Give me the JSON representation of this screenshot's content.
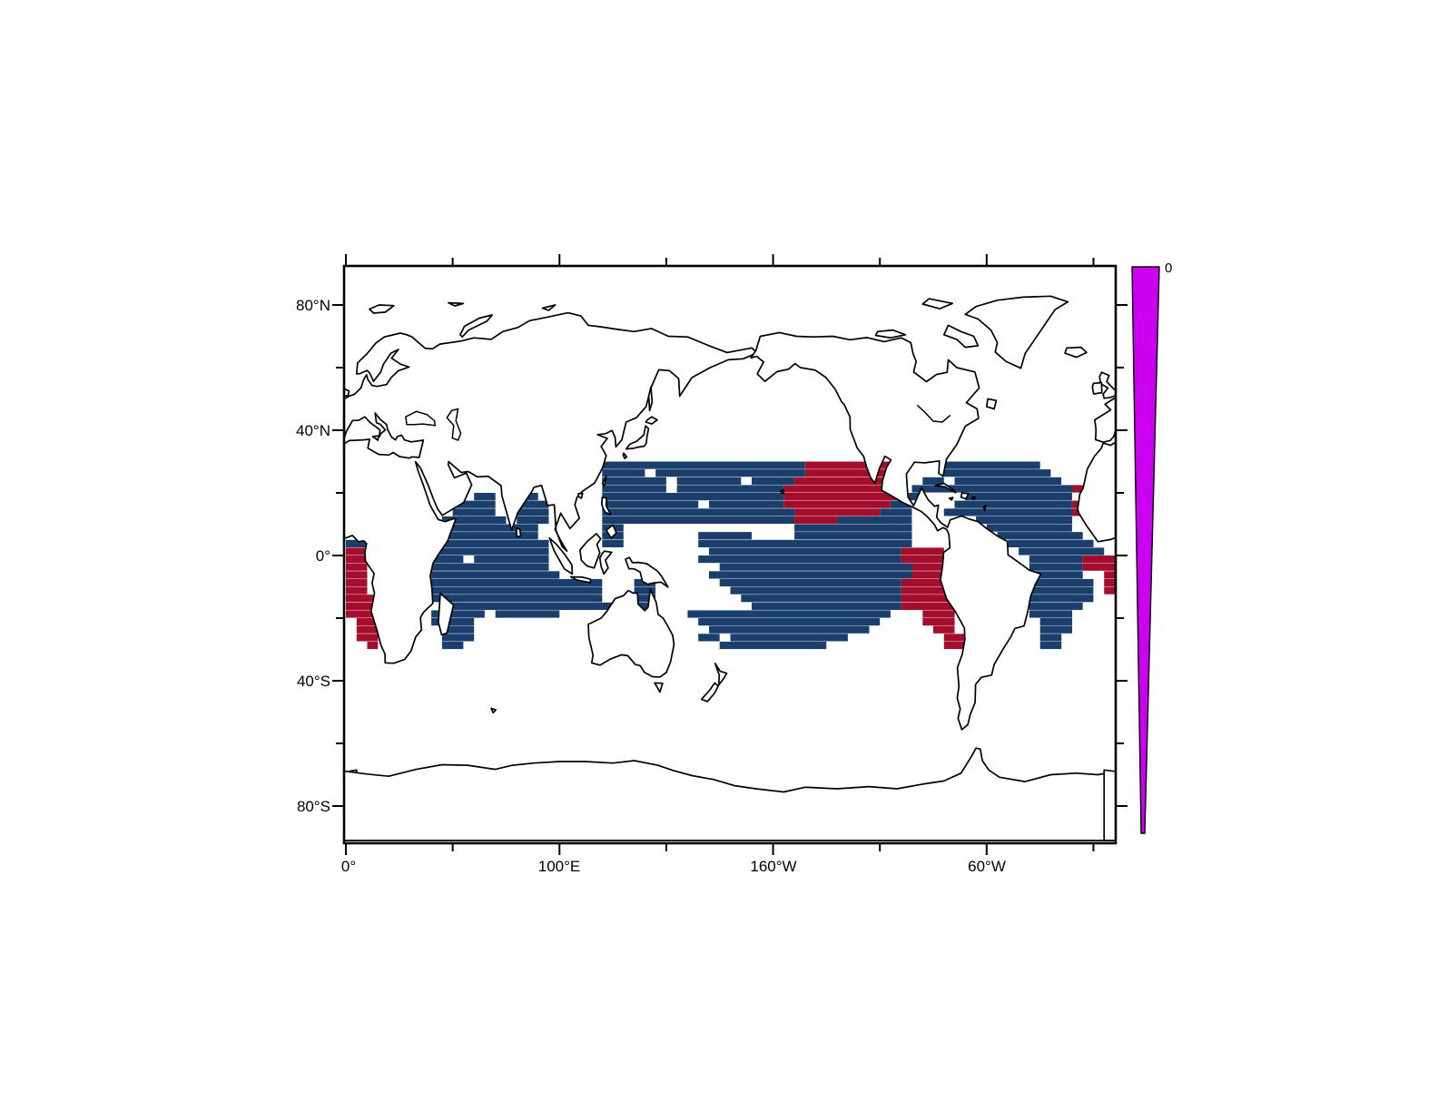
{
  "figure": {
    "background": "#ffffff",
    "frame_color": "#000000"
  },
  "axes": {
    "x_ticks": [
      {
        "label": "0°",
        "lon": 0
      },
      {
        "label": "100°E",
        "lon": 100
      },
      {
        "label": "160°W",
        "lon": 200
      },
      {
        "label": "60°W",
        "lon": 300
      }
    ],
    "x_minor": [
      50,
      150,
      250,
      350
    ],
    "y_ticks": [
      {
        "label": "80°N",
        "lat": 80
      },
      {
        "label": "40°N",
        "lat": 40
      },
      {
        "label": "0°",
        "lat": 0
      },
      {
        "label": "40°S",
        "lat": -40
      },
      {
        "label": "80°S",
        "lat": -80
      }
    ],
    "y_minor": [
      60,
      20,
      -20,
      -60
    ]
  },
  "colorbar": {
    "tick_label": "0",
    "fill": "#cc00f0"
  },
  "chart_data": {
    "type": "heatmap",
    "projection": "equirectangular-world-map",
    "lon_range": [
      0,
      360
    ],
    "lat_range": [
      -90,
      90
    ],
    "cell_size_deg": {
      "lon": 5,
      "lat": 2.5
    },
    "grid_origin": {
      "lat_north": 30,
      "lon_west": 0
    },
    "colors": {
      "B": "#1b3f6d",
      "R": "#a50d2d"
    },
    "colorbar_label": "0",
    "rows_rle": [
      [
        [
          ".",
          24
        ],
        [
          "B",
          19
        ],
        [
          "R",
          8
        ],
        [
          ".",
          5
        ],
        [
          "B",
          9
        ],
        [
          ".",
          7
        ]
      ],
      [
        [
          ".",
          24
        ],
        [
          "B",
          4
        ],
        [
          ".",
          1
        ],
        [
          "B",
          14
        ],
        [
          "R",
          8
        ],
        [
          ".",
          5
        ],
        [
          "B",
          10
        ],
        [
          ".",
          6
        ]
      ],
      [
        [
          ".",
          24
        ],
        [
          "B",
          6
        ],
        [
          ".",
          1
        ],
        [
          "B",
          6
        ],
        [
          ".",
          1
        ],
        [
          "B",
          4
        ],
        [
          "R",
          10
        ],
        [
          ".",
          2
        ],
        [
          "B",
          2
        ],
        [
          ".",
          1
        ],
        [
          "B",
          10
        ],
        [
          ".",
          5
        ]
      ],
      [
        [
          ".",
          24
        ],
        [
          "B",
          6
        ],
        [
          ".",
          1
        ],
        [
          "B",
          10
        ],
        [
          "R",
          11
        ],
        [
          ".",
          1
        ],
        [
          "B",
          15
        ],
        [
          "R",
          1
        ],
        [
          ".",
          3
        ]
      ],
      [
        [
          ".",
          12
        ],
        [
          "B",
          2
        ],
        [
          ".",
          2
        ],
        [
          "B",
          2
        ],
        [
          ".",
          6
        ],
        [
          "B",
          17
        ],
        [
          "R",
          11
        ],
        [
          "B",
          2
        ],
        [
          ".",
          4
        ],
        [
          "B",
          10
        ],
        [
          ".",
          4
        ]
      ],
      [
        [
          ".",
          10
        ],
        [
          "B",
          4
        ],
        [
          ".",
          2
        ],
        [
          "B",
          3
        ],
        [
          ".",
          5
        ],
        [
          "B",
          9
        ],
        [
          ".",
          1
        ],
        [
          "B",
          7
        ],
        [
          "R",
          10
        ],
        [
          "B",
          2
        ],
        [
          ".",
          4
        ],
        [
          "B",
          11
        ],
        [
          "R",
          1
        ],
        [
          ".",
          3
        ]
      ],
      [
        [
          ".",
          10
        ],
        [
          "B",
          4
        ],
        [
          ".",
          2
        ],
        [
          "B",
          3
        ],
        [
          ".",
          5
        ],
        [
          "B",
          18
        ],
        [
          "R",
          8
        ],
        [
          "B",
          3
        ],
        [
          ".",
          3
        ],
        [
          "B",
          12
        ],
        [
          "R",
          1
        ],
        [
          ".",
          3
        ]
      ],
      [
        [
          ".",
          9
        ],
        [
          "B",
          6
        ],
        [
          ".",
          1
        ],
        [
          "B",
          3
        ],
        [
          ".",
          5
        ],
        [
          "B",
          18
        ],
        [
          "R",
          4
        ],
        [
          "B",
          7
        ],
        [
          ".",
          6
        ],
        [
          "B",
          9
        ],
        [
          ".",
          4
        ]
      ],
      [
        [
          ".",
          9
        ],
        [
          "B",
          9
        ],
        [
          ".",
          6
        ],
        [
          "B",
          2
        ],
        [
          ".",
          16
        ],
        [
          "B",
          11
        ],
        [
          ".",
          7
        ],
        [
          "B",
          8
        ],
        [
          ".",
          4
        ]
      ],
      [
        [
          ".",
          8
        ],
        [
          "B",
          10
        ],
        [
          ".",
          6
        ],
        [
          "B",
          2
        ],
        [
          ".",
          7
        ],
        [
          "B",
          5
        ],
        [
          ".",
          4
        ],
        [
          "B",
          11
        ],
        [
          ".",
          8
        ],
        [
          "B",
          8
        ],
        [
          ".",
          3
        ]
      ],
      [
        [
          "B",
          2
        ],
        [
          ".",
          6
        ],
        [
          "B",
          11
        ],
        [
          ".",
          5
        ],
        [
          "B",
          2
        ],
        [
          ".",
          7
        ],
        [
          "B",
          20
        ],
        [
          ".",
          9
        ],
        [
          "B",
          8
        ],
        [
          ".",
          2
        ]
      ],
      [
        [
          "R",
          2
        ],
        [
          ".",
          6
        ],
        [
          "B",
          11
        ],
        [
          ".",
          15
        ],
        [
          "B",
          18
        ],
        [
          "R",
          4
        ],
        [
          ".",
          7
        ],
        [
          "B",
          8
        ],
        [
          ".",
          1
        ]
      ],
      [
        [
          "R",
          2
        ],
        [
          ".",
          6
        ],
        [
          "B",
          3
        ],
        [
          ".",
          1
        ],
        [
          "B",
          7
        ],
        [
          ".",
          14
        ],
        [
          "B",
          19
        ],
        [
          "R",
          5
        ],
        [
          ".",
          7
        ],
        [
          "B",
          5
        ],
        [
          "R",
          3
        ]
      ],
      [
        [
          "R",
          2
        ],
        [
          ".",
          6
        ],
        [
          "B",
          11
        ],
        [
          ".",
          16
        ],
        [
          "B",
          18
        ],
        [
          "R",
          5
        ],
        [
          ".",
          6
        ],
        [
          "B",
          5
        ],
        [
          "R",
          3
        ]
      ],
      [
        [
          "R",
          2
        ],
        [
          ".",
          6
        ],
        [
          "B",
          12
        ],
        [
          ".",
          14
        ],
        [
          "B",
          19
        ],
        [
          "R",
          5
        ],
        [
          ".",
          6
        ],
        [
          "B",
          5
        ],
        [
          ".",
          2
        ],
        [
          "R",
          1
        ]
      ],
      [
        [
          "R",
          2
        ],
        [
          ".",
          6
        ],
        [
          "B",
          16
        ],
        [
          ".",
          3
        ],
        [
          "B",
          2
        ],
        [
          ".",
          6
        ],
        [
          "B",
          17
        ],
        [
          "R",
          6
        ],
        [
          ".",
          6
        ],
        [
          "B",
          6
        ],
        [
          ".",
          1
        ],
        [
          "R",
          1
        ]
      ],
      [
        [
          "R",
          2
        ],
        [
          ".",
          6
        ],
        [
          "B",
          16
        ],
        [
          ".",
          3
        ],
        [
          "B",
          2
        ],
        [
          ".",
          7
        ],
        [
          "B",
          16
        ],
        [
          "R",
          6
        ],
        [
          ".",
          5
        ],
        [
          "B",
          7
        ],
        [
          ".",
          1
        ],
        [
          "R",
          1
        ]
      ],
      [
        [
          "R",
          3
        ],
        [
          ".",
          5
        ],
        [
          "B",
          16
        ],
        [
          ".",
          3
        ],
        [
          "B",
          2
        ],
        [
          ".",
          8
        ],
        [
          "B",
          15
        ],
        [
          "R",
          6
        ],
        [
          ".",
          5
        ],
        [
          "B",
          7
        ],
        [
          ".",
          2
        ]
      ],
      [
        [
          "R",
          3
        ],
        [
          ".",
          6
        ],
        [
          "B",
          17
        ],
        [
          ".",
          1
        ],
        [
          "B",
          2
        ],
        [
          ".",
          9
        ],
        [
          "B",
          14
        ],
        [
          "R",
          5
        ],
        [
          ".",
          7
        ],
        [
          "B",
          5
        ],
        [
          ".",
          3
        ]
      ],
      [
        [
          "R",
          3
        ],
        [
          ".",
          5
        ],
        [
          "B",
          5
        ],
        [
          ".",
          1
        ],
        [
          "B",
          6
        ],
        [
          ".",
          6
        ],
        [
          "B",
          3
        ],
        [
          ".",
          3
        ],
        [
          "B",
          19
        ],
        [
          ".",
          3
        ],
        [
          "R",
          3
        ],
        [
          ".",
          7
        ],
        [
          "B",
          4
        ],
        [
          ".",
          4
        ]
      ],
      [
        [
          ".",
          1
        ],
        [
          "R",
          2
        ],
        [
          ".",
          5
        ],
        [
          "B",
          4
        ],
        [
          ".",
          14
        ],
        [
          "B",
          3
        ],
        [
          ".",
          4
        ],
        [
          "B",
          17
        ],
        [
          ".",
          4
        ],
        [
          "R",
          3
        ],
        [
          ".",
          8
        ],
        [
          "B",
          3
        ],
        [
          ".",
          4
        ]
      ],
      [
        [
          ".",
          1
        ],
        [
          "R",
          2
        ],
        [
          ".",
          6
        ],
        [
          "B",
          3
        ],
        [
          ".",
          15
        ],
        [
          "B",
          2
        ],
        [
          ".",
          5
        ],
        [
          "B",
          15
        ],
        [
          ".",
          6
        ],
        [
          "R",
          2
        ],
        [
          ".",
          8
        ],
        [
          "B",
          3
        ],
        [
          ".",
          4
        ]
      ],
      [
        [
          ".",
          1
        ],
        [
          "R",
          2
        ],
        [
          ".",
          6
        ],
        [
          "B",
          3
        ],
        [
          ".",
          15
        ],
        [
          "B",
          2
        ],
        [
          ".",
          4
        ],
        [
          "B",
          2
        ],
        [
          ".",
          1
        ],
        [
          "B",
          11
        ],
        [
          ".",
          9
        ],
        [
          "R",
          2
        ],
        [
          ".",
          7
        ],
        [
          "B",
          2
        ],
        [
          ".",
          5
        ]
      ],
      [
        [
          ".",
          2
        ],
        [
          "R",
          1
        ],
        [
          ".",
          6
        ],
        [
          "B",
          2
        ],
        [
          ".",
          17
        ],
        [
          "B",
          1
        ],
        [
          ".",
          6
        ],
        [
          "B",
          10
        ],
        [
          ".",
          11
        ],
        [
          "R",
          2
        ],
        [
          ".",
          7
        ],
        [
          "B",
          2
        ],
        [
          ".",
          5
        ]
      ]
    ]
  }
}
